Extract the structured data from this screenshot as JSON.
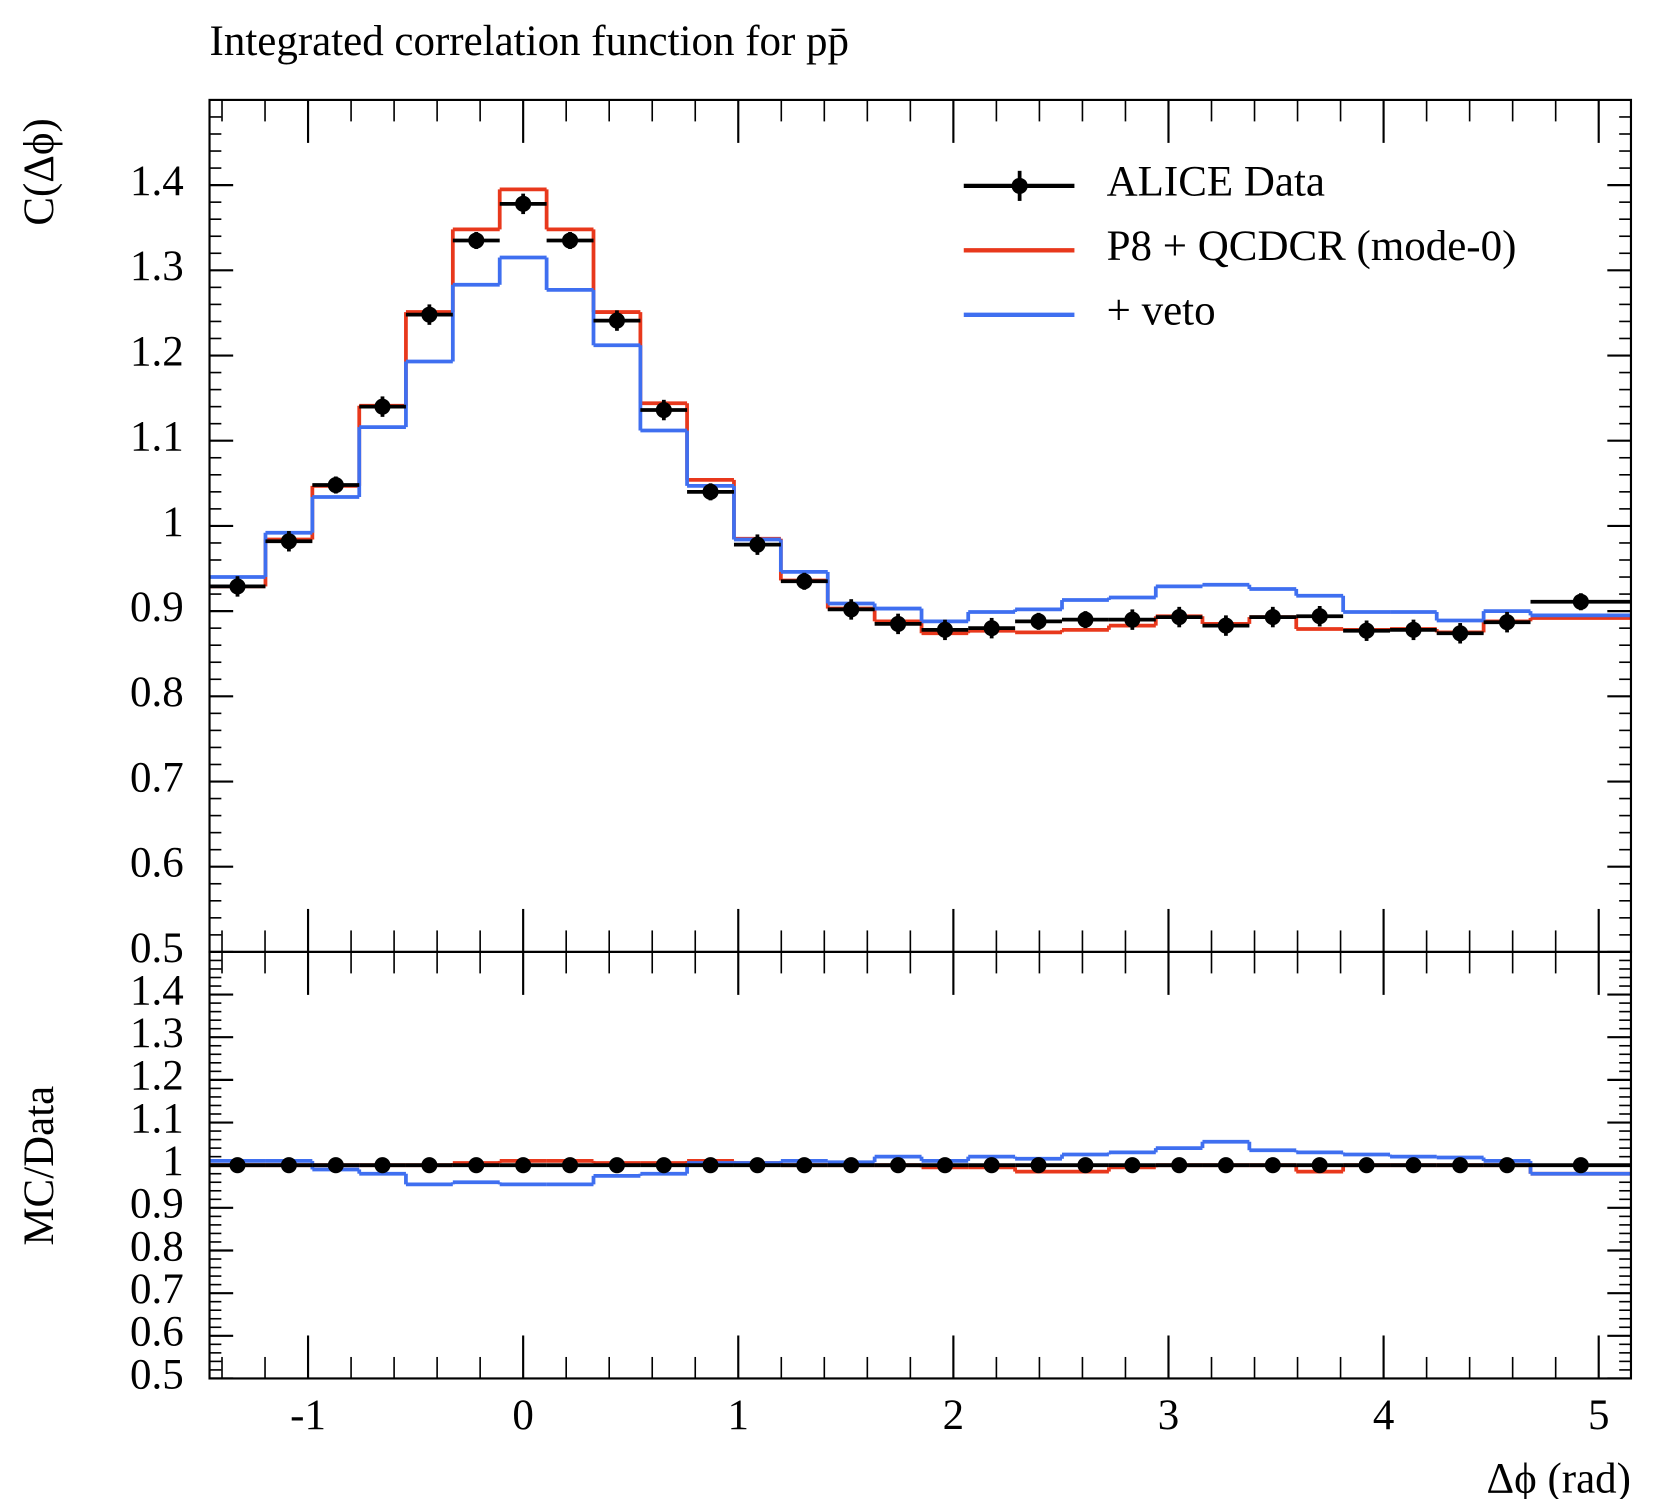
{
  "chart_data": [
    {
      "type": "step",
      "title": "Integrated correlation function for pp̄",
      "ylabel": "C(Δϕ)",
      "xlabel": "Δϕ (rad)",
      "x": [
        -1.328,
        -1.089,
        -0.871,
        -0.654,
        -0.436,
        -0.218,
        0,
        0.218,
        0.436,
        0.654,
        0.871,
        1.089,
        1.307,
        1.525,
        1.743,
        1.961,
        2.178,
        2.396,
        2.614,
        2.832,
        3.05,
        3.267,
        3.485,
        3.703,
        3.921,
        4.139,
        4.356,
        4.574,
        4.917
      ],
      "bins": [
        -1.458,
        -1.198,
        -0.98,
        -0.762,
        -0.545,
        -0.327,
        -0.109,
        0.109,
        0.327,
        0.545,
        0.762,
        0.98,
        1.198,
        1.416,
        1.634,
        1.852,
        2.069,
        2.287,
        2.505,
        2.723,
        2.941,
        3.158,
        3.376,
        3.594,
        3.812,
        4.03,
        4.247,
        4.465,
        4.683,
        5.15
      ],
      "xlim": [
        -1.458,
        5.15
      ],
      "xticks": [
        -1,
        0,
        1,
        2,
        3,
        4,
        5
      ],
      "ylim": [
        0.5,
        1.5
      ],
      "yticks": [
        0.5,
        0.6,
        0.7,
        0.8,
        0.9,
        1,
        1.1,
        1.2,
        1.3,
        1.4
      ],
      "legend": "upper right",
      "series": [
        {
          "name": "ALICE Data",
          "color": "#000000",
          "style": "points",
          "values": [
            0.929,
            0.982,
            1.048,
            1.14,
            1.248,
            1.335,
            1.378,
            1.335,
            1.241,
            1.136,
            1.04,
            0.978,
            0.935,
            0.902,
            0.885,
            0.878,
            0.88,
            0.888,
            0.89,
            0.89,
            0.893,
            0.883,
            0.893,
            0.894,
            0.877,
            0.878,
            0.874,
            0.887,
            0.911
          ],
          "errors": [
            0.012,
            0.012,
            0.01,
            0.012,
            0.012,
            0.01,
            0.012,
            0.01,
            0.012,
            0.012,
            0.01,
            0.012,
            0.01,
            0.012,
            0.012,
            0.012,
            0.012,
            0.01,
            0.01,
            0.012,
            0.012,
            0.012,
            0.012,
            0.012,
            0.012,
            0.012,
            0.012,
            0.012,
            0.01
          ]
        },
        {
          "name": "P8 + QCDCR (mode-0)",
          "color": "#e8381c",
          "style": "step",
          "values": [
            0.929,
            0.984,
            1.047,
            1.141,
            1.251,
            1.348,
            1.395,
            1.348,
            1.251,
            1.144,
            1.054,
            0.985,
            0.936,
            0.903,
            0.888,
            0.874,
            0.877,
            0.875,
            0.878,
            0.883,
            0.894,
            0.885,
            0.893,
            0.879,
            0.878,
            0.879,
            0.875,
            0.888,
            0.892
          ]
        },
        {
          "name": "+ veto",
          "color": "#3f6ff0",
          "style": "step",
          "values": [
            0.94,
            0.992,
            1.034,
            1.116,
            1.193,
            1.283,
            1.315,
            1.277,
            1.212,
            1.112,
            1.047,
            0.984,
            0.946,
            0.909,
            0.903,
            0.888,
            0.899,
            0.902,
            0.913,
            0.916,
            0.929,
            0.931,
            0.926,
            0.918,
            0.899,
            0.899,
            0.889,
            0.9,
            0.895
          ]
        }
      ]
    },
    {
      "type": "step",
      "ylabel": "MC/Data",
      "ylim": [
        0.5,
        1.5
      ],
      "yticks": [
        0.5,
        0.6,
        0.7,
        0.8,
        0.9,
        1,
        1.1,
        1.2,
        1.3,
        1.4
      ],
      "series": [
        {
          "color": "#000000",
          "style": "points",
          "values": [
            1,
            1,
            1,
            1,
            1,
            1,
            1,
            1,
            1,
            1,
            1,
            1,
            1,
            1,
            1,
            1,
            1,
            1,
            1,
            1,
            1,
            1,
            1,
            1,
            1,
            1,
            1,
            1,
            1
          ]
        },
        {
          "color": "#e8381c",
          "style": "step",
          "values": [
            1,
            1,
            1,
            1,
            1,
            1.005,
            1.01,
            1.01,
            1.005,
            1.005,
            1.01,
            1.005,
            1,
            1,
            1,
            0.995,
            0.995,
            0.985,
            0.985,
            0.995,
            1,
            1,
            1,
            0.985,
            1,
            1,
            1,
            1,
            0.98
          ]
        },
        {
          "color": "#3f6ff0",
          "style": "step",
          "values": [
            1.01,
            1.01,
            0.99,
            0.98,
            0.955,
            0.96,
            0.955,
            0.955,
            0.975,
            0.98,
            1.005,
            1.005,
            1.01,
            1.007,
            1.02,
            1.01,
            1.02,
            1.015,
            1.025,
            1.03,
            1.04,
            1.055,
            1.035,
            1.03,
            1.025,
            1.02,
            1.018,
            1.01,
            0.98
          ]
        }
      ]
    }
  ]
}
